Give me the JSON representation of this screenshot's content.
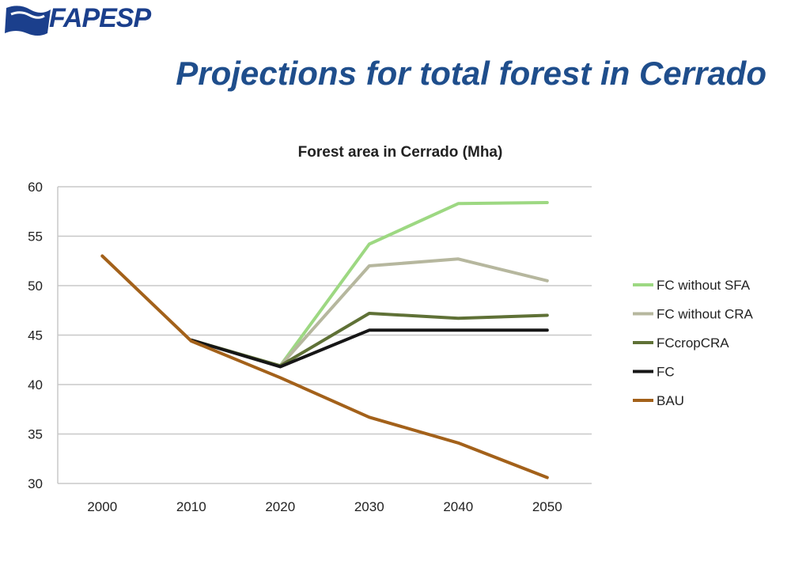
{
  "logo": {
    "text": "FAPESP",
    "color": "#1b3f8c"
  },
  "slide": {
    "title": "Projections for total forest in Cerrado"
  },
  "chart_data": {
    "type": "line",
    "title": "Forest area in Cerrado (Mha)",
    "xlabel": "",
    "ylabel": "",
    "x": [
      "2000",
      "2010",
      "2020",
      "2030",
      "2040",
      "2050"
    ],
    "ylim": [
      30,
      60
    ],
    "yticks": [
      30,
      35,
      40,
      45,
      50,
      55,
      60
    ],
    "grid": "horizontal",
    "legend_position": "right",
    "series": [
      {
        "name": "FC without SFA",
        "color": "#9dd882",
        "values": [
          null,
          null,
          41.9,
          54.2,
          58.3,
          58.4
        ]
      },
      {
        "name": "FC without CRA",
        "color": "#b6b79e",
        "values": [
          null,
          null,
          41.9,
          52.0,
          52.7,
          50.5
        ]
      },
      {
        "name": "FCcropCRA",
        "color": "#5f7136",
        "values": [
          null,
          44.5,
          41.9,
          47.2,
          46.7,
          47.0
        ]
      },
      {
        "name": "FC",
        "color": "#161616",
        "values": [
          null,
          44.5,
          41.8,
          45.5,
          45.5,
          45.5
        ]
      },
      {
        "name": "BAU",
        "color": "#a3611a",
        "values": [
          53.0,
          44.4,
          40.7,
          36.7,
          34.1,
          30.6
        ]
      }
    ]
  }
}
